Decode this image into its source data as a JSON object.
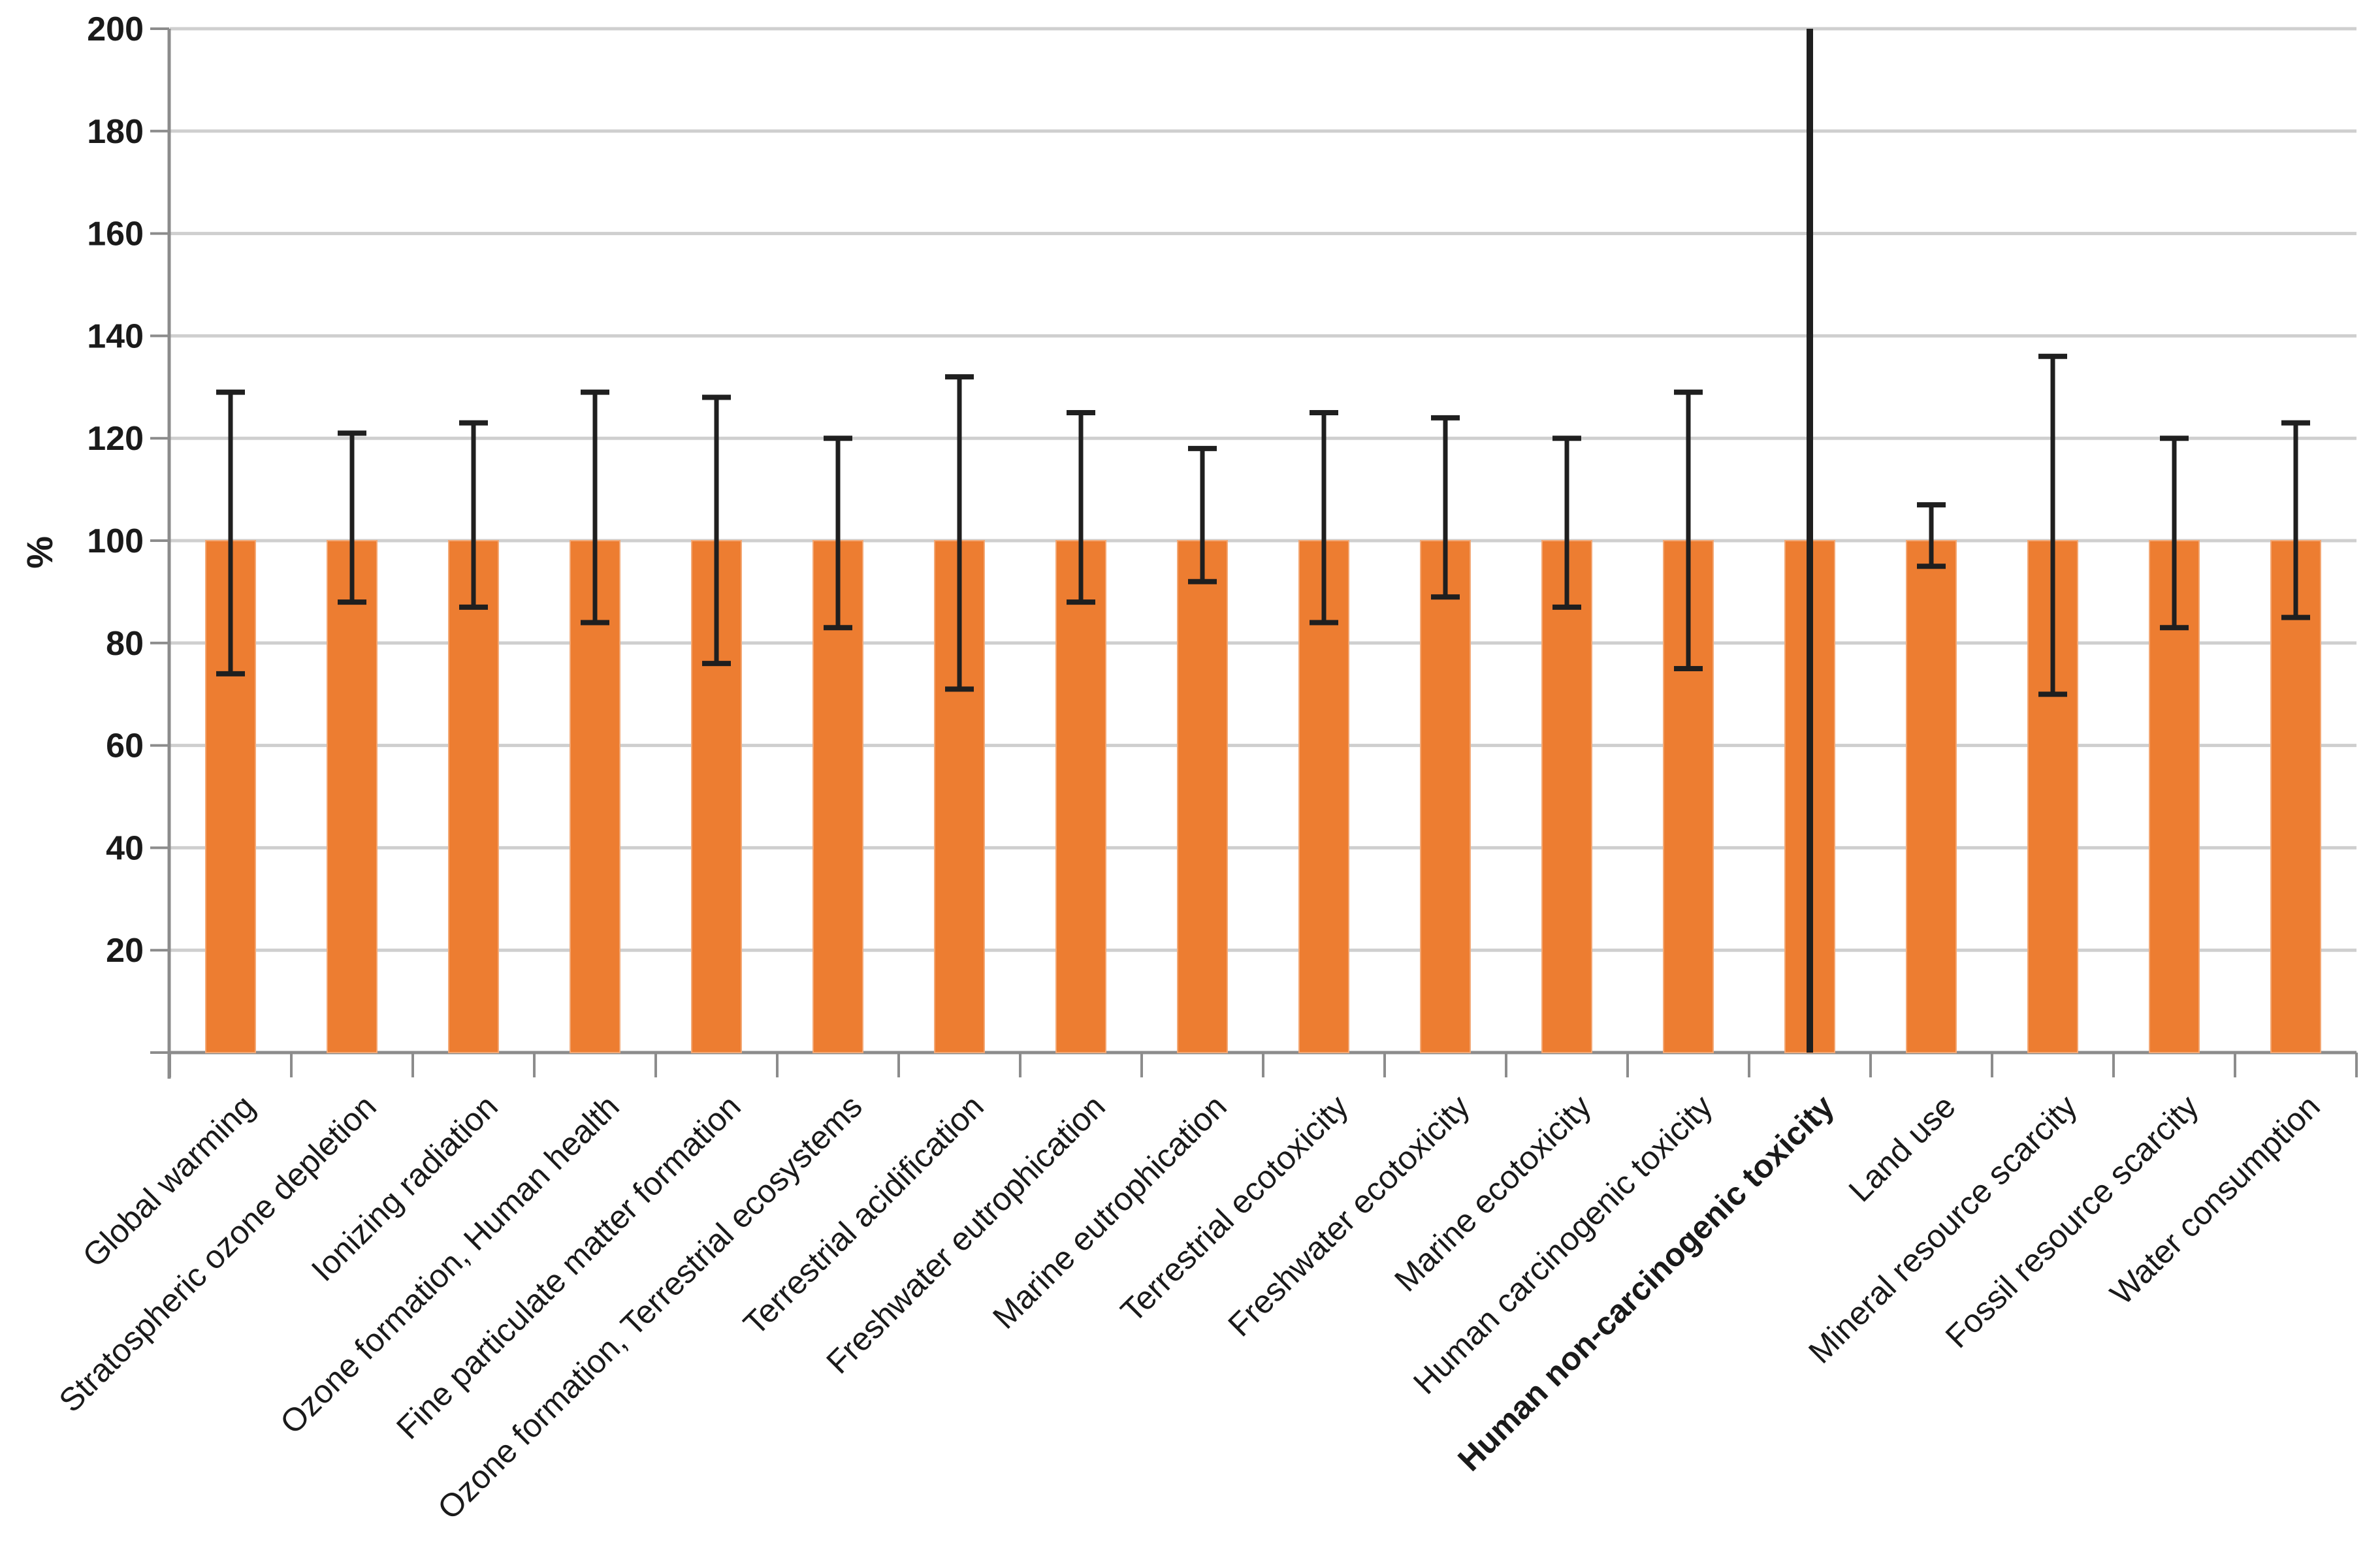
{
  "chart_data": {
    "type": "bar",
    "title": "",
    "xlabel": "",
    "ylabel": "%",
    "ylim": [
      0,
      200
    ],
    "ytick_step": 20,
    "yticks": [
      200,
      180,
      160,
      140,
      120,
      100,
      80,
      60,
      40,
      20
    ],
    "grid": "horizontal-light-gray",
    "legend": "none",
    "categories": [
      "Global warming",
      "Stratospheric ozone depletion",
      "Ionizing radiation",
      "Ozone formation, Human health",
      "Fine particulate matter formation",
      "Ozone formation, Terrestrial ecosystems",
      "Terrestrial acidification",
      "Freshwater eutrophication",
      "Marine eutrophication",
      "Terrestrial ecotoxicity",
      "Freshwater ecotoxicity",
      "Marine ecotoxicity",
      "Human carcinogenic toxicity",
      "Human non-carcinogenic toxicity",
      "Land use",
      "Mineral resource scarcity",
      "Fossil resource scarcity",
      "Water consumption"
    ],
    "values": [
      100,
      100,
      100,
      100,
      100,
      100,
      100,
      100,
      100,
      100,
      100,
      100,
      100,
      100,
      100,
      100,
      100,
      100
    ],
    "error_high": [
      129,
      121,
      123,
      129,
      128,
      120,
      132,
      125,
      118,
      125,
      124,
      120,
      129,
      200,
      107,
      136,
      120,
      123
    ],
    "error_low": [
      74,
      88,
      87,
      84,
      76,
      83,
      71,
      88,
      92,
      84,
      89,
      87,
      75,
      0,
      95,
      70,
      83,
      85
    ],
    "error_clipped": [
      false,
      false,
      false,
      false,
      false,
      false,
      false,
      false,
      false,
      false,
      false,
      false,
      false,
      true,
      false,
      false,
      false,
      false
    ],
    "bold_category_index": 13,
    "colors": {
      "bar_fill": "#ED7D31",
      "bar_edge": "#F3A875",
      "error_bar": "#1f1f1f",
      "gridline": "#cfcfcf",
      "axis": "#8c8c8c",
      "text": "#1a1a1a",
      "background": "#ffffff"
    }
  }
}
